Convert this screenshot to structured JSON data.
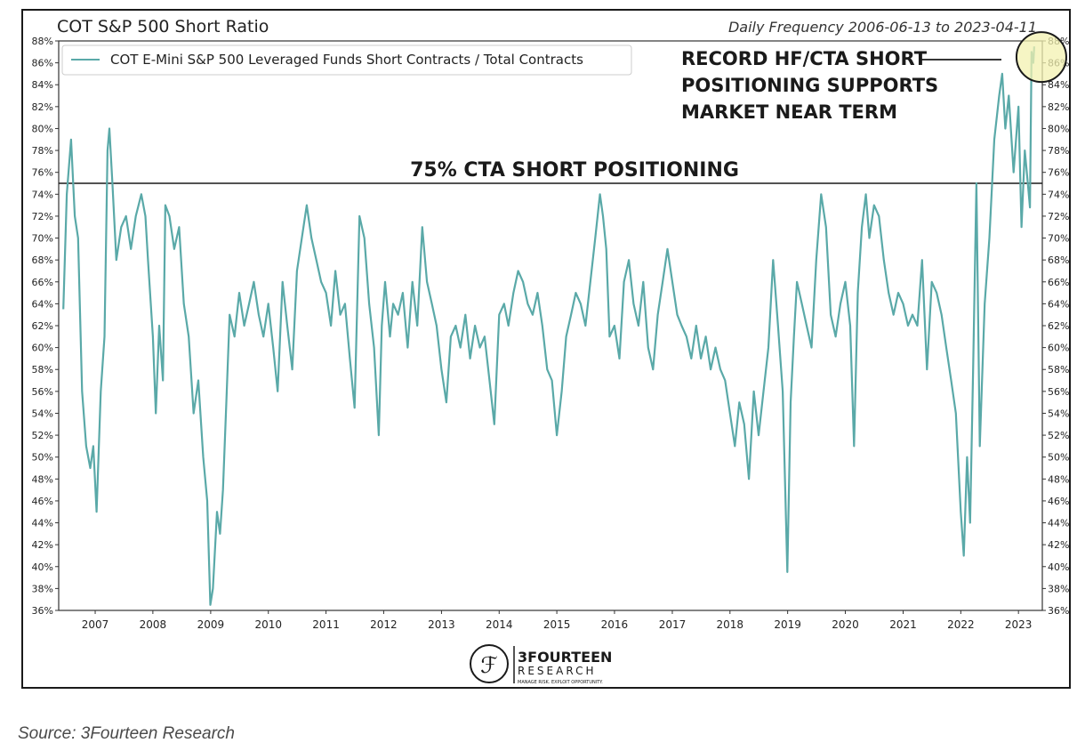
{
  "chart_data": {
    "type": "line",
    "title": "COT S&P 500 Short Ratio",
    "subtitle": "Daily Frequency 2006-06-13 to 2023-04-11",
    "xlabel": "",
    "ylabel": "",
    "x_tick_labels": [
      "2007",
      "2008",
      "2009",
      "2010",
      "2011",
      "2012",
      "2013",
      "2014",
      "2015",
      "2016",
      "2017",
      "2018",
      "2019",
      "2020",
      "2021",
      "2022",
      "2023"
    ],
    "y_tick_labels": [
      "36%",
      "38%",
      "40%",
      "42%",
      "44%",
      "46%",
      "48%",
      "50%",
      "52%",
      "54%",
      "56%",
      "58%",
      "60%",
      "62%",
      "64%",
      "66%",
      "68%",
      "70%",
      "72%",
      "74%",
      "76%",
      "78%",
      "80%",
      "82%",
      "84%",
      "86%",
      "88%"
    ],
    "xlim": [
      "2006-05-15",
      "2023-06-01"
    ],
    "ylim": [
      36,
      88
    ],
    "grid": false,
    "legend_position": "top-left",
    "series": [
      {
        "name": "COT E-Mini S&P 500 Leveraged Funds Short Contracts / Total Contracts",
        "color": "#5aa9a8",
        "points": [
          [
            "2006-06-13",
            63.5
          ],
          [
            "2006-07-05",
            74
          ],
          [
            "2006-08-01",
            79
          ],
          [
            "2006-08-25",
            72
          ],
          [
            "2006-09-15",
            70
          ],
          [
            "2006-10-10",
            56
          ],
          [
            "2006-11-05",
            51
          ],
          [
            "2006-12-01",
            49
          ],
          [
            "2006-12-20",
            51
          ],
          [
            "2007-01-10",
            45
          ],
          [
            "2007-02-05",
            56
          ],
          [
            "2007-03-01",
            61
          ],
          [
            "2007-03-20",
            78
          ],
          [
            "2007-04-01",
            80
          ],
          [
            "2007-04-20",
            75
          ],
          [
            "2007-05-15",
            68
          ],
          [
            "2007-06-15",
            71
          ],
          [
            "2007-07-15",
            72
          ],
          [
            "2007-08-15",
            69
          ],
          [
            "2007-09-15",
            72
          ],
          [
            "2007-10-20",
            74
          ],
          [
            "2007-11-15",
            72
          ],
          [
            "2007-12-01",
            68
          ],
          [
            "2008-01-01",
            61
          ],
          [
            "2008-01-20",
            54
          ],
          [
            "2008-02-10",
            62
          ],
          [
            "2008-03-05",
            57
          ],
          [
            "2008-03-20",
            73
          ],
          [
            "2008-04-15",
            72
          ],
          [
            "2008-05-15",
            69
          ],
          [
            "2008-06-15",
            71
          ],
          [
            "2008-07-15",
            64
          ],
          [
            "2008-08-15",
            61
          ],
          [
            "2008-09-15",
            54
          ],
          [
            "2008-10-15",
            57
          ],
          [
            "2008-11-15",
            50
          ],
          [
            "2008-12-10",
            46
          ],
          [
            "2008-12-30",
            36.5
          ],
          [
            "2009-01-15",
            38
          ],
          [
            "2009-02-10",
            45
          ],
          [
            "2009-03-01",
            43
          ],
          [
            "2009-03-20",
            47
          ],
          [
            "2009-04-10",
            55
          ],
          [
            "2009-05-01",
            63
          ],
          [
            "2009-06-01",
            61
          ],
          [
            "2009-07-01",
            65
          ],
          [
            "2009-08-01",
            62
          ],
          [
            "2009-09-01",
            64
          ],
          [
            "2009-10-01",
            66
          ],
          [
            "2009-11-01",
            63
          ],
          [
            "2009-12-01",
            61
          ],
          [
            "2010-01-01",
            64
          ],
          [
            "2010-02-01",
            60
          ],
          [
            "2010-03-01",
            56
          ],
          [
            "2010-04-01",
            66
          ],
          [
            "2010-05-01",
            62
          ],
          [
            "2010-06-01",
            58
          ],
          [
            "2010-07-01",
            67
          ],
          [
            "2010-08-01",
            70
          ],
          [
            "2010-09-01",
            73
          ],
          [
            "2010-10-01",
            70
          ],
          [
            "2010-11-01",
            68
          ],
          [
            "2010-12-01",
            66
          ],
          [
            "2011-01-01",
            65
          ],
          [
            "2011-02-01",
            62
          ],
          [
            "2011-03-01",
            67
          ],
          [
            "2011-04-01",
            63
          ],
          [
            "2011-05-01",
            64
          ],
          [
            "2011-06-01",
            59
          ],
          [
            "2011-07-01",
            54.5
          ],
          [
            "2011-08-01",
            72
          ],
          [
            "2011-09-01",
            70
          ],
          [
            "2011-10-01",
            64
          ],
          [
            "2011-11-01",
            60
          ],
          [
            "2011-12-01",
            52
          ],
          [
            "2011-12-20",
            62
          ],
          [
            "2012-01-10",
            66
          ],
          [
            "2012-02-10",
            61
          ],
          [
            "2012-03-01",
            64
          ],
          [
            "2012-04-01",
            63
          ],
          [
            "2012-05-01",
            65
          ],
          [
            "2012-06-01",
            60
          ],
          [
            "2012-07-01",
            66
          ],
          [
            "2012-08-01",
            62
          ],
          [
            "2012-09-01",
            71
          ],
          [
            "2012-10-01",
            66
          ],
          [
            "2012-11-01",
            64
          ],
          [
            "2012-12-01",
            62
          ],
          [
            "2013-01-01",
            58
          ],
          [
            "2013-02-01",
            55
          ],
          [
            "2013-03-01",
            61
          ],
          [
            "2013-04-01",
            62
          ],
          [
            "2013-05-01",
            60
          ],
          [
            "2013-06-01",
            63
          ],
          [
            "2013-07-01",
            59
          ],
          [
            "2013-08-01",
            62
          ],
          [
            "2013-09-01",
            60
          ],
          [
            "2013-10-01",
            61
          ],
          [
            "2013-11-01",
            57
          ],
          [
            "2013-12-01",
            53
          ],
          [
            "2014-01-01",
            63
          ],
          [
            "2014-02-01",
            64
          ],
          [
            "2014-03-01",
            62
          ],
          [
            "2014-04-01",
            65
          ],
          [
            "2014-05-01",
            67
          ],
          [
            "2014-06-01",
            66
          ],
          [
            "2014-07-01",
            64
          ],
          [
            "2014-08-01",
            63
          ],
          [
            "2014-09-01",
            65
          ],
          [
            "2014-10-01",
            62
          ],
          [
            "2014-11-01",
            58
          ],
          [
            "2014-12-01",
            57
          ],
          [
            "2015-01-01",
            52
          ],
          [
            "2015-02-01",
            56
          ],
          [
            "2015-03-01",
            61
          ],
          [
            "2015-04-01",
            63
          ],
          [
            "2015-05-01",
            65
          ],
          [
            "2015-06-01",
            64
          ],
          [
            "2015-07-01",
            62
          ],
          [
            "2015-08-01",
            66
          ],
          [
            "2015-09-01",
            70
          ],
          [
            "2015-10-01",
            74
          ],
          [
            "2015-10-20",
            72
          ],
          [
            "2015-11-10",
            69
          ],
          [
            "2015-12-01",
            61
          ],
          [
            "2016-01-01",
            62
          ],
          [
            "2016-02-01",
            59
          ],
          [
            "2016-03-01",
            66
          ],
          [
            "2016-04-01",
            68
          ],
          [
            "2016-05-01",
            64
          ],
          [
            "2016-06-01",
            62
          ],
          [
            "2016-07-01",
            66
          ],
          [
            "2016-08-01",
            60
          ],
          [
            "2016-09-01",
            58
          ],
          [
            "2016-10-01",
            63
          ],
          [
            "2016-11-01",
            66
          ],
          [
            "2016-12-01",
            69
          ],
          [
            "2017-01-01",
            66
          ],
          [
            "2017-02-01",
            63
          ],
          [
            "2017-03-01",
            62
          ],
          [
            "2017-04-01",
            61
          ],
          [
            "2017-05-01",
            59
          ],
          [
            "2017-06-01",
            62
          ],
          [
            "2017-07-01",
            59
          ],
          [
            "2017-08-01",
            61
          ],
          [
            "2017-09-01",
            58
          ],
          [
            "2017-10-01",
            60
          ],
          [
            "2017-11-01",
            58
          ],
          [
            "2017-12-01",
            57
          ],
          [
            "2018-01-01",
            54
          ],
          [
            "2018-02-01",
            51
          ],
          [
            "2018-03-01",
            55
          ],
          [
            "2018-04-01",
            53
          ],
          [
            "2018-05-01",
            48
          ],
          [
            "2018-06-01",
            56
          ],
          [
            "2018-07-01",
            52
          ],
          [
            "2018-08-01",
            56
          ],
          [
            "2018-09-01",
            60
          ],
          [
            "2018-10-01",
            68
          ],
          [
            "2018-11-01",
            62
          ],
          [
            "2018-12-01",
            56
          ],
          [
            "2018-12-30",
            39.5
          ],
          [
            "2019-01-20",
            55
          ],
          [
            "2019-02-10",
            61
          ],
          [
            "2019-03-01",
            66
          ],
          [
            "2019-04-01",
            64
          ],
          [
            "2019-05-01",
            62
          ],
          [
            "2019-06-01",
            60
          ],
          [
            "2019-07-01",
            68
          ],
          [
            "2019-08-01",
            74
          ],
          [
            "2019-09-01",
            71
          ],
          [
            "2019-10-01",
            63
          ],
          [
            "2019-11-01",
            61
          ],
          [
            "2019-12-01",
            64
          ],
          [
            "2020-01-01",
            66
          ],
          [
            "2020-02-01",
            62
          ],
          [
            "2020-02-25",
            51
          ],
          [
            "2020-03-20",
            65
          ],
          [
            "2020-04-15",
            71
          ],
          [
            "2020-05-10",
            74
          ],
          [
            "2020-06-01",
            70
          ],
          [
            "2020-07-01",
            73
          ],
          [
            "2020-08-01",
            72
          ],
          [
            "2020-09-01",
            68
          ],
          [
            "2020-10-01",
            65
          ],
          [
            "2020-11-01",
            63
          ],
          [
            "2020-12-01",
            65
          ],
          [
            "2021-01-01",
            64
          ],
          [
            "2021-02-01",
            62
          ],
          [
            "2021-03-01",
            63
          ],
          [
            "2021-04-01",
            62
          ],
          [
            "2021-05-01",
            68
          ],
          [
            "2021-06-01",
            58
          ],
          [
            "2021-07-01",
            66
          ],
          [
            "2021-08-01",
            65
          ],
          [
            "2021-09-01",
            63
          ],
          [
            "2021-10-01",
            60
          ],
          [
            "2021-11-01",
            57
          ],
          [
            "2021-12-01",
            54
          ],
          [
            "2022-01-01",
            45
          ],
          [
            "2022-01-20",
            41
          ],
          [
            "2022-02-10",
            50
          ],
          [
            "2022-03-01",
            44
          ],
          [
            "2022-03-20",
            58
          ],
          [
            "2022-04-10",
            75
          ],
          [
            "2022-05-01",
            51
          ],
          [
            "2022-06-01",
            64
          ],
          [
            "2022-07-01",
            70
          ],
          [
            "2022-08-01",
            79
          ],
          [
            "2022-09-01",
            83
          ],
          [
            "2022-09-20",
            85
          ],
          [
            "2022-10-10",
            80
          ],
          [
            "2022-11-01",
            83
          ],
          [
            "2022-12-01",
            76
          ],
          [
            "2023-01-01",
            82
          ],
          [
            "2023-01-20",
            71
          ],
          [
            "2023-02-10",
            78
          ],
          [
            "2023-03-01",
            75
          ],
          [
            "2023-03-15",
            72.8
          ],
          [
            "2023-03-25",
            87
          ],
          [
            "2023-04-05",
            86
          ],
          [
            "2023-04-11",
            87.5
          ]
        ]
      }
    ],
    "reference_line": {
      "value": 75,
      "label": "75% CTA SHORT POSITIONING",
      "color": "#1a1a1a"
    },
    "annotation": {
      "lines": [
        "RECORD HF/CTA SHORT",
        "POSITIONING SUPPORTS",
        "MARKET NEAR TERM"
      ],
      "highlight_color": "#f3f1b0"
    }
  },
  "logo": {
    "name": "3FOURTEEN",
    "sub": "RESEARCH",
    "tagline": "MANAGE RISK. EXPLOIT OPPORTUNITY."
  },
  "source": "Source: 3Fourteen Research"
}
